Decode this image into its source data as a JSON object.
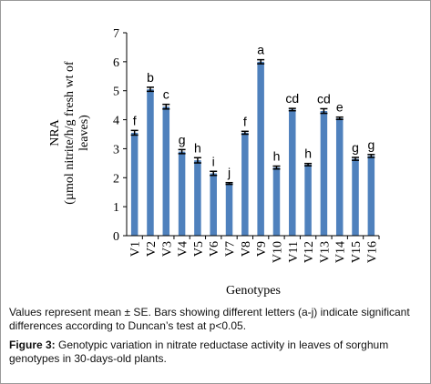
{
  "chart_data": {
    "type": "bar",
    "ylabel_line1": "NRA",
    "ylabel_line2": "(µmol nitrite/h/g fresh wt of",
    "ylabel_line3": "leaves)",
    "xlabel": "Genotypes",
    "ylim": [
      0,
      7
    ],
    "yticks": [
      0,
      1,
      2,
      3,
      4,
      5,
      6,
      7
    ],
    "grid": false,
    "legend": "none",
    "bar_color": "#4f81bd",
    "categories": [
      "V1",
      "V2",
      "V3",
      "V4",
      "V5",
      "V6",
      "V7",
      "V8",
      "V9",
      "V10",
      "V11",
      "V12",
      "V13",
      "V14",
      "V15",
      "V16"
    ],
    "values": [
      3.55,
      5.05,
      4.45,
      2.9,
      2.6,
      2.15,
      1.8,
      3.55,
      6.0,
      2.35,
      4.35,
      2.45,
      4.3,
      4.05,
      2.65,
      2.75
    ],
    "errors": [
      0.08,
      0.07,
      0.08,
      0.07,
      0.09,
      0.07,
      0.03,
      0.05,
      0.07,
      0.05,
      0.04,
      0.04,
      0.08,
      0.04,
      0.05,
      0.05
    ],
    "letters": [
      "f",
      "b",
      "c",
      "g",
      "h",
      "i",
      "j",
      "f",
      "a",
      "h",
      "cd",
      "h",
      "cd",
      "e",
      "g",
      "g"
    ]
  },
  "caption": {
    "note": "Values represent mean ± SE. Bars showing different  letters (a-j) indicate significant differences according to Duncan’s test at p<0.05.",
    "figure_label": "Figure 3:",
    "figure_text": " Genotypic variation in nitrate reductase activity in leaves of sorghum genotypes in 30-days-old plants."
  }
}
